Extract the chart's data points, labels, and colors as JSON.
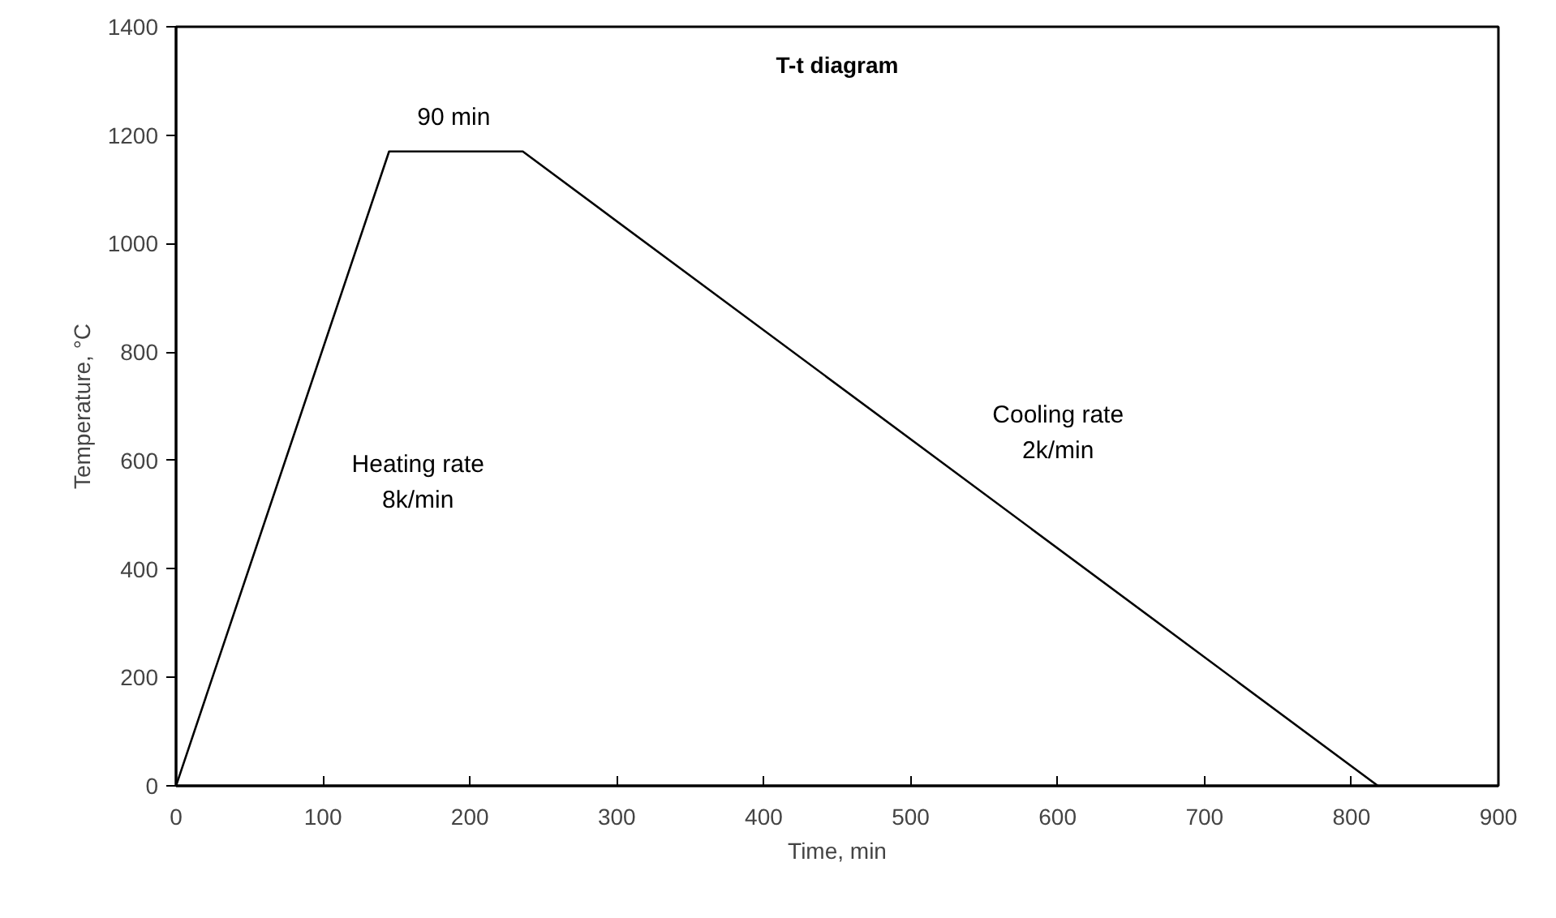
{
  "chart_data": {
    "type": "line",
    "title": "T-t diagram",
    "xlabel": "Time, min",
    "ylabel": "Temperature, °C",
    "x": [
      0,
      145,
      236,
      818
    ],
    "series": [
      {
        "color": "#000000",
        "values": [
          0,
          1170,
          1170,
          0
        ]
      }
    ],
    "xlim": [
      0,
      900
    ],
    "xticks": [
      0,
      100,
      200,
      300,
      400,
      500,
      600,
      700,
      800,
      900
    ],
    "ylim": [
      0,
      1400
    ],
    "yticks": [
      0,
      200,
      400,
      600,
      800,
      1000,
      1200,
      1400
    ],
    "line_style": "solid",
    "annotations": [
      "90 min",
      "Heating rate\n8k/min",
      "Cooling rate\n2k/min"
    ]
  }
}
